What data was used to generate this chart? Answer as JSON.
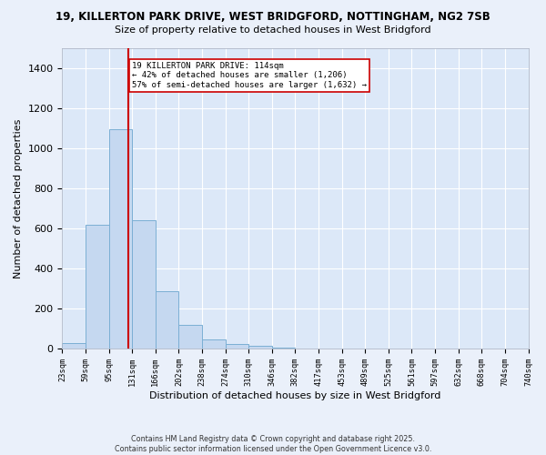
{
  "title1": "19, KILLERTON PARK DRIVE, WEST BRIDGFORD, NOTTINGHAM, NG2 7SB",
  "title2": "Size of property relative to detached houses in West Bridgford",
  "xlabel": "Distribution of detached houses by size in West Bridgford",
  "ylabel": "Number of detached properties",
  "bar_color": "#c5d8f0",
  "bar_edge_color": "#7bafd4",
  "bg_color": "#dce8f8",
  "grid_color": "#ffffff",
  "fig_bg_color": "#eaf0fa",
  "categories": [
    "23sqm",
    "59sqm",
    "95sqm",
    "131sqm",
    "166sqm",
    "202sqm",
    "238sqm",
    "274sqm",
    "310sqm",
    "346sqm",
    "382sqm",
    "417sqm",
    "453sqm",
    "489sqm",
    "525sqm",
    "561sqm",
    "597sqm",
    "632sqm",
    "668sqm",
    "704sqm",
    "740sqm"
  ],
  "bar_heights": [
    28,
    620,
    1095,
    640,
    285,
    120,
    47,
    25,
    15,
    5,
    0,
    0,
    0,
    0,
    0,
    0,
    0,
    0,
    0,
    0
  ],
  "red_line_x": 2.83,
  "annotation_text": "19 KILLERTON PARK DRIVE: 114sqm\n← 42% of detached houses are smaller (1,206)\n57% of semi-detached houses are larger (1,632) →",
  "annotation_box_color": "#ffffff",
  "annotation_box_edge": "#cc0000",
  "red_line_color": "#cc0000",
  "ylim": [
    0,
    1500
  ],
  "yticks": [
    0,
    200,
    400,
    600,
    800,
    1000,
    1200,
    1400
  ],
  "footnote1": "Contains HM Land Registry data © Crown copyright and database right 2025.",
  "footnote2": "Contains public sector information licensed under the Open Government Licence v3.0."
}
